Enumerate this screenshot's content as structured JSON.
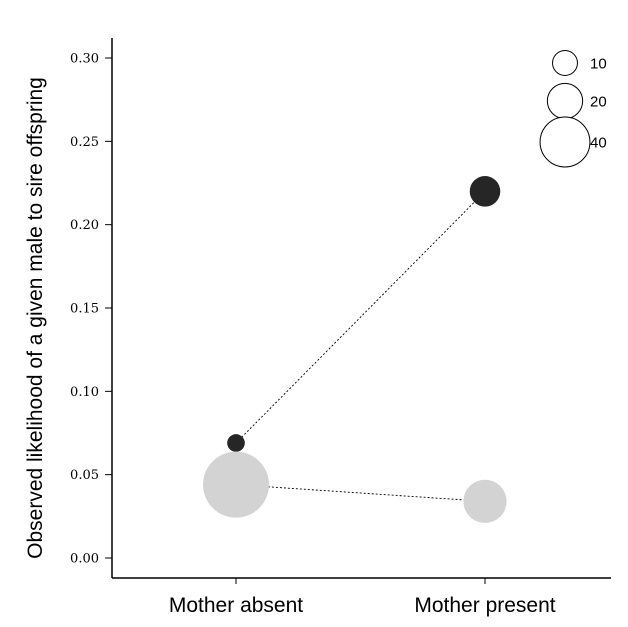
{
  "chart_data": {
    "type": "scatter",
    "title": "",
    "xlabel": "",
    "ylabel": "Observed likelihood of a given male to sire offspring",
    "categories": [
      "Mother absent",
      "Mother present"
    ],
    "ylim": [
      0,
      0.3
    ],
    "yticks": [
      "0.00",
      "0.05",
      "0.10",
      "0.15",
      "0.20",
      "0.25",
      "0.30"
    ],
    "grid": false,
    "series": [
      {
        "color": "#262626",
        "values": [
          0.069,
          0.22
        ],
        "sizes": [
          5,
          15
        ],
        "connector": "dotted"
      },
      {
        "color": "#d3d3d3",
        "values": [
          0.044,
          0.034
        ],
        "sizes": [
          70,
          30
        ],
        "connector": "dotted"
      }
    ],
    "size_legend": {
      "position": "top-right",
      "entries": [
        {
          "label": "10",
          "size": 10
        },
        {
          "label": "20",
          "size": 20
        },
        {
          "label": "40",
          "size": 40
        }
      ]
    }
  }
}
